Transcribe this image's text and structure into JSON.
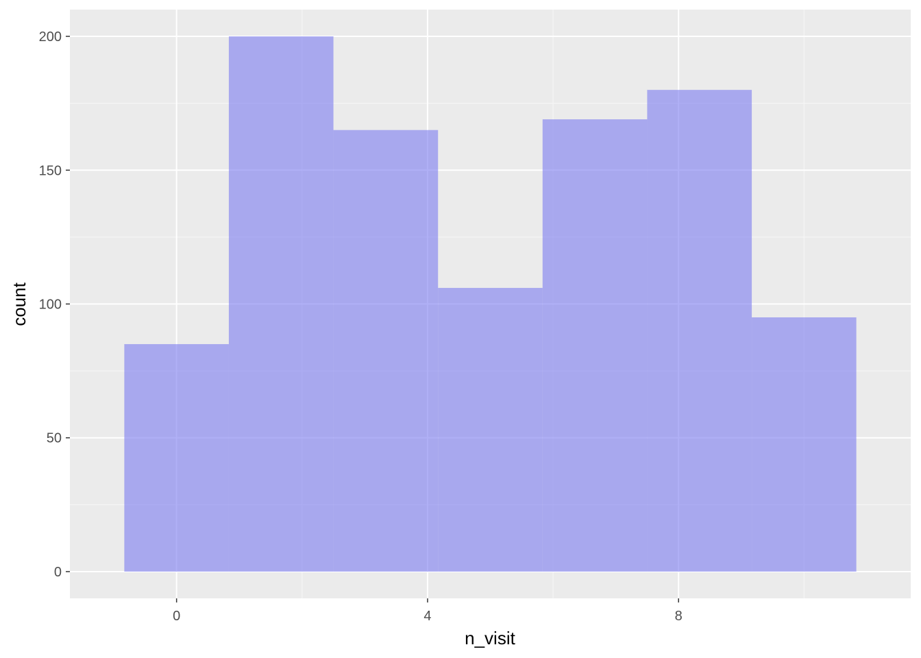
{
  "chart_data": {
    "type": "bar",
    "subtype": "histogram",
    "xlabel": "n_visit",
    "ylabel": "count",
    "xlim": [
      -1.7,
      11.7
    ],
    "ylim": [
      -10,
      210
    ],
    "x_ticks": [
      0,
      4,
      8
    ],
    "x_tick_labels": [
      "0",
      "4",
      "8"
    ],
    "y_ticks": [
      0,
      50,
      100,
      150,
      200
    ],
    "y_tick_labels": [
      "0",
      "50",
      "100",
      "150",
      "200"
    ],
    "x_minor_grid": [
      2,
      6,
      10
    ],
    "y_minor_grid": [
      25,
      75,
      125,
      175
    ],
    "bins": [
      {
        "x_start": -0.833,
        "x_end": 0.833,
        "count": 85
      },
      {
        "x_start": 0.833,
        "x_end": 2.5,
        "count": 200
      },
      {
        "x_start": 2.5,
        "x_end": 4.167,
        "count": 165
      },
      {
        "x_start": 4.167,
        "x_end": 5.833,
        "count": 106
      },
      {
        "x_start": 5.833,
        "x_end": 7.5,
        "count": 169
      },
      {
        "x_start": 7.5,
        "x_end": 9.167,
        "count": 180
      },
      {
        "x_start": 9.167,
        "x_end": 10.833,
        "count": 95
      }
    ],
    "grid": true,
    "legend": "none",
    "colors": {
      "panel_background": "#ebebeb",
      "grid_major": "#ffffff",
      "grid_minor": "#f5f5f5",
      "bar_fill": "#7b7bf0",
      "bar_opacity": 0.6
    }
  }
}
